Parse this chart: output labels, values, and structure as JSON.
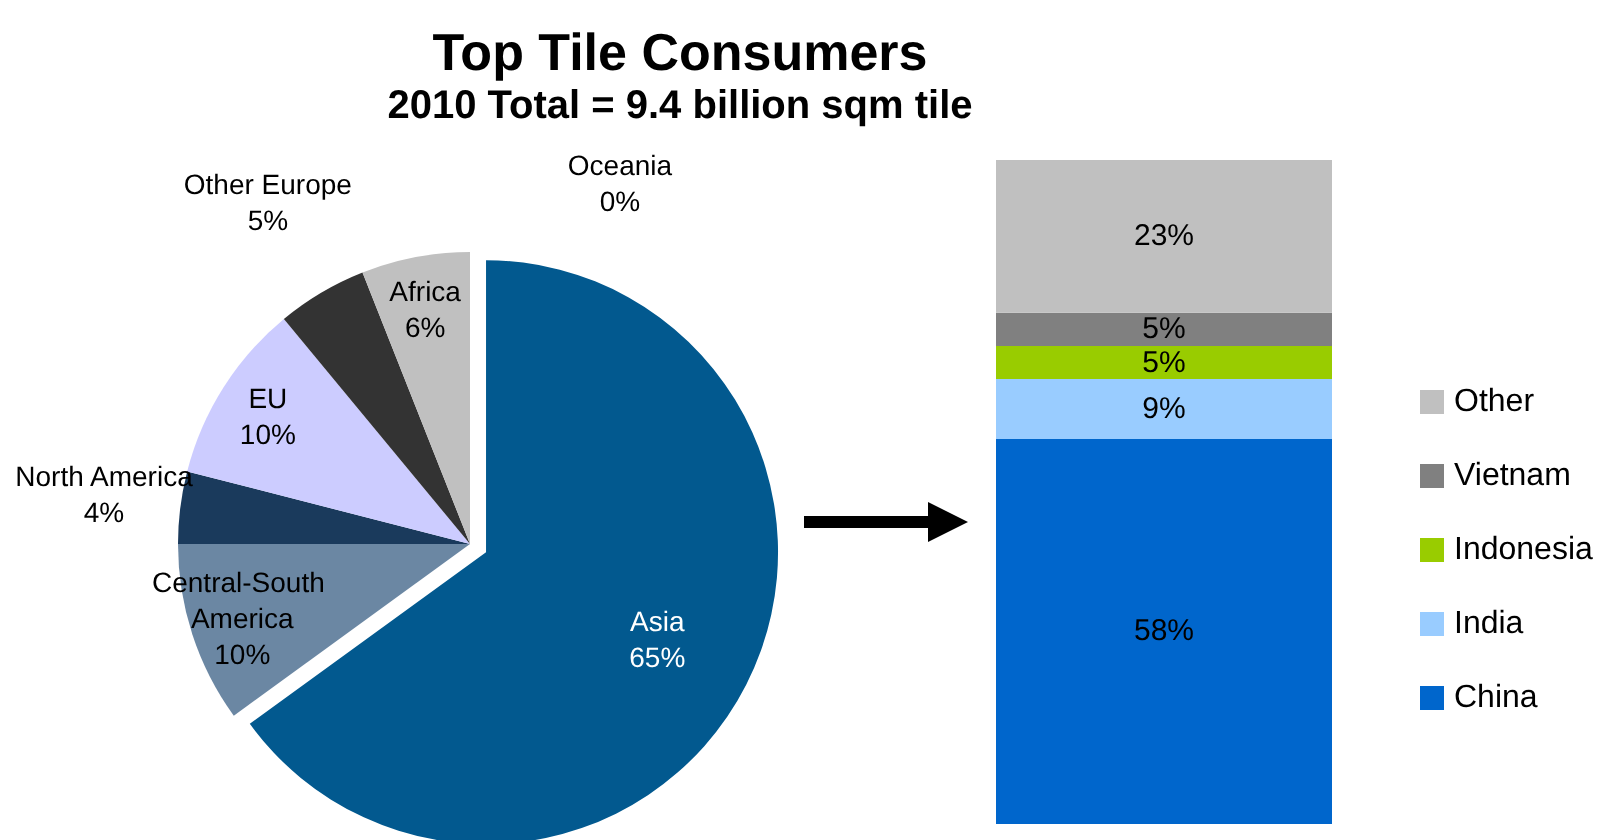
{
  "chart_data": [
    {
      "type": "pie",
      "title": "Top Tile Consumers",
      "subtitle": "2010 Total = 9.4 billion sqm tile",
      "categories": [
        "Asia",
        "Central-South America",
        "North America",
        "EU",
        "Other Europe",
        "Africa",
        "Oceania"
      ],
      "values": [
        65,
        10,
        4,
        10,
        5,
        6,
        0
      ],
      "value_labels": [
        "65%",
        "10%",
        "4%",
        "10%",
        "5%",
        "6%",
        "0%"
      ],
      "colors": [
        "#02598f",
        "#6b87a3",
        "#1a3a5c",
        "#ccccff",
        "#333333",
        "#c0c0c0",
        "#999999"
      ]
    },
    {
      "type": "bar",
      "stacked": true,
      "categories": [
        null
      ],
      "ylim": [
        0,
        100
      ],
      "tick_labels": false,
      "legend": "right",
      "series": [
        {
          "name": "China",
          "color": "#0066cc",
          "values": [
            58
          ],
          "value_labels": [
            "58%"
          ]
        },
        {
          "name": "India",
          "color": "#99ccff",
          "values": [
            9
          ],
          "value_labels": [
            "9%"
          ]
        },
        {
          "name": "Indonesia",
          "color": "#99cc00",
          "values": [
            5
          ],
          "value_labels": [
            "5%"
          ]
        },
        {
          "name": "Vietnam",
          "color": "#808080",
          "values": [
            5
          ],
          "value_labels": [
            "5%"
          ]
        },
        {
          "name": "Other",
          "color": "#c0c0c0",
          "values": [
            23
          ],
          "value_labels": [
            "23%"
          ]
        }
      ]
    }
  ]
}
